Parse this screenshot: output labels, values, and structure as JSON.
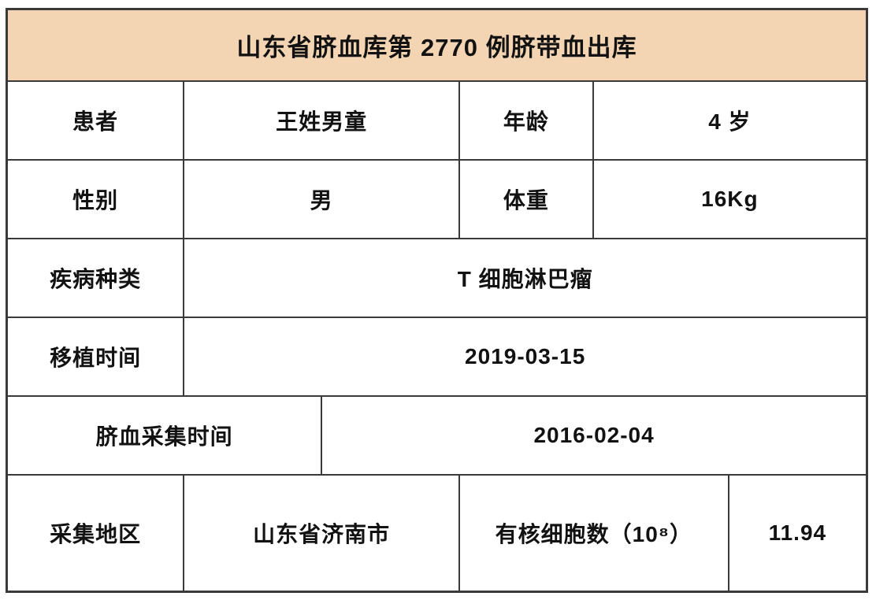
{
  "title": "山东省脐血库第 2770 例脐带血出库",
  "colors": {
    "header_bg": "#f3d5b3",
    "border": "#3a3a3a",
    "text": "#121212",
    "page_bg": "#ffffff"
  },
  "table": {
    "rows": [
      {
        "cells": [
          {
            "text": "患者",
            "span": 1
          },
          {
            "text": "王姓男童",
            "span": 2
          },
          {
            "text": "年龄",
            "span": 1
          },
          {
            "text": "4 岁",
            "span": 2
          }
        ]
      },
      {
        "cells": [
          {
            "text": "性别",
            "span": 1
          },
          {
            "text": "男",
            "span": 2
          },
          {
            "text": "体重",
            "span": 1
          },
          {
            "text": "16Kg",
            "span": 2
          }
        ]
      },
      {
        "cells": [
          {
            "text": "疾病种类",
            "span": 1
          },
          {
            "text": "T 细胞淋巴瘤",
            "span": 5
          }
        ]
      },
      {
        "cells": [
          {
            "text": "移植时间",
            "span": 1
          },
          {
            "text": "2019-03-15",
            "span": 5
          }
        ]
      },
      {
        "cells": [
          {
            "text": "脐血采集时间",
            "span": 2
          },
          {
            "text": "2016-02-04",
            "span": 4
          }
        ]
      },
      {
        "cells": [
          {
            "text": "采集地区",
            "span": 1
          },
          {
            "text": "山东省济南市",
            "span": 2
          },
          {
            "text": "有核细胞数（10⁸）",
            "span": 2
          },
          {
            "text": "11.94",
            "span": 1
          }
        ]
      }
    ]
  }
}
